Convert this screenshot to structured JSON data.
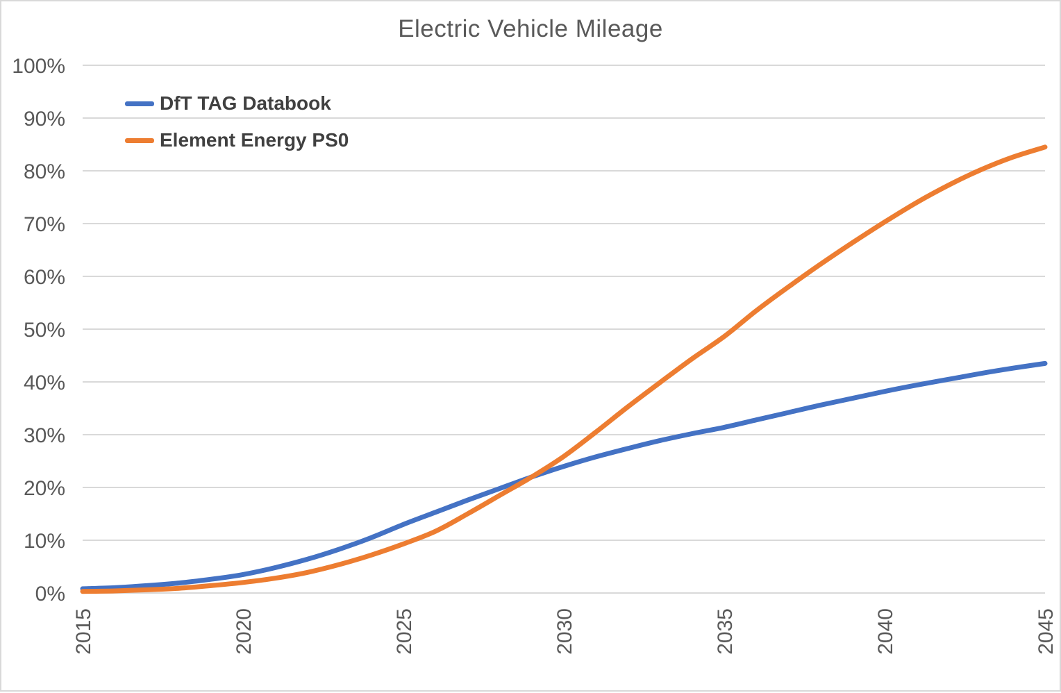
{
  "page": {
    "background": "#ffffff",
    "border_color": "#d9d9d9"
  },
  "chart_data": {
    "type": "line",
    "title": "Electric Vehicle Mileage",
    "title_color": "#595959",
    "xlabel": "",
    "ylabel": "",
    "xlim": [
      2015,
      2045
    ],
    "ylim": [
      0,
      100
    ],
    "y_unit": "%",
    "grid": "horizontal",
    "gridline_color": "#d9d9d9",
    "axis_text_color": "#595959",
    "legend_position": "top-left-inside",
    "legend_text_color": "#404040",
    "x_tick_labels": [
      "2015",
      "2020",
      "2025",
      "2030",
      "2035",
      "2040",
      "2045"
    ],
    "y_tick_labels": [
      "0%",
      "10%",
      "20%",
      "30%",
      "40%",
      "50%",
      "60%",
      "70%",
      "80%",
      "90%",
      "100%"
    ],
    "x": [
      2015,
      2016,
      2017,
      2018,
      2019,
      2020,
      2021,
      2022,
      2023,
      2024,
      2025,
      2026,
      2027,
      2028,
      2029,
      2030,
      2031,
      2032,
      2033,
      2034,
      2035,
      2036,
      2037,
      2038,
      2039,
      2040,
      2041,
      2042,
      2043,
      2044,
      2045
    ],
    "series": [
      {
        "name": "DfT TAG Databook",
        "color": "#4472C4",
        "values": [
          0.8,
          1.0,
          1.4,
          1.9,
          2.6,
          3.5,
          4.8,
          6.4,
          8.3,
          10.5,
          13.0,
          15.3,
          17.6,
          19.8,
          22.0,
          24.0,
          25.8,
          27.4,
          28.9,
          30.2,
          31.4,
          32.8,
          34.2,
          35.6,
          36.9,
          38.2,
          39.4,
          40.5,
          41.6,
          42.6,
          43.5
        ]
      },
      {
        "name": "Element Energy PS0",
        "color": "#ED7D31",
        "values": [
          0.3,
          0.4,
          0.6,
          0.9,
          1.4,
          2.0,
          2.8,
          3.9,
          5.4,
          7.2,
          9.3,
          11.7,
          15.0,
          18.5,
          22.0,
          25.9,
          30.5,
          35.3,
          39.9,
          44.4,
          48.6,
          53.5,
          58.0,
          62.3,
          66.4,
          70.3,
          74.0,
          77.3,
          80.2,
          82.6,
          84.5
        ]
      }
    ]
  }
}
